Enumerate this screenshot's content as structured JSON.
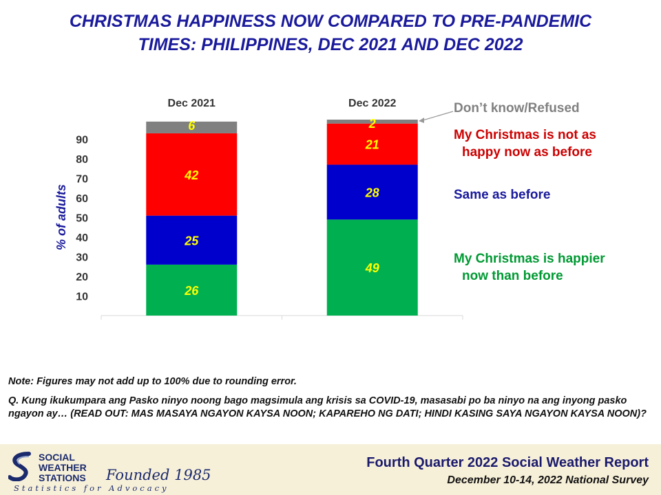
{
  "title": {
    "line1": "CHRISTMAS HAPPINESS NOW COMPARED TO PRE-PANDEMIC",
    "line2": "TIMES: PHILIPPINES, DEC 2021 AND DEC 2022"
  },
  "chart_data": {
    "type": "bar",
    "stacked": true,
    "categories": [
      "Dec 2021",
      "Dec 2022"
    ],
    "ylabel": "% of adults",
    "ylim": [
      0,
      100
    ],
    "yticks": [
      10,
      20,
      30,
      40,
      50,
      60,
      70,
      80,
      90
    ],
    "grid": false,
    "legend_placement": "right",
    "series": [
      {
        "name": "My Christmas is happier now than before",
        "color": "#00b050",
        "values": [
          26,
          49
        ]
      },
      {
        "name": "Same as before",
        "color": "#0000cc",
        "values": [
          25,
          28
        ]
      },
      {
        "name": "My Christmas is not as happy now as before",
        "color": "#ff0000",
        "values": [
          42,
          21
        ]
      },
      {
        "name": "Don't know/Refused",
        "color": "#808080",
        "values": [
          6,
          2
        ]
      }
    ],
    "data_label_color": "#ffff00"
  },
  "legend": [
    {
      "lines": [
        "Don’t know/Refused"
      ],
      "color": "#808080"
    },
    {
      "lines": [
        "My Christmas is not as",
        "happy now as before"
      ],
      "color": "#cc0000"
    },
    {
      "lines": [
        "Same as before"
      ],
      "color": "#1a1a9c"
    },
    {
      "lines": [
        "My Christmas is happier",
        "now than before"
      ],
      "color": "#009933"
    }
  ],
  "note": "Note: Figures may not add up to 100% due to rounding error.",
  "question": "Q. Kung ikukumpara ang Pasko ninyo noong bago magsimula ang krisis sa COVID-19, masasabi po ba ninyo na ang inyong pasko ngayon ay… (READ OUT: MAS MASAYA NGAYON KAYSA NOON; KAPAREHO NG DATI; HINDI KASING SAYA NGAYON KAYSA NOON)?",
  "footer": {
    "logo_lines": [
      "SOCIAL",
      "WEATHER",
      "STATIONS"
    ],
    "founded": "Founded 1985",
    "tagline": "Statistics for Advocacy",
    "report_title": "Fourth Quarter 2022 Social Weather Report",
    "report_subtitle": "December 10-14, 2022 National Survey"
  }
}
